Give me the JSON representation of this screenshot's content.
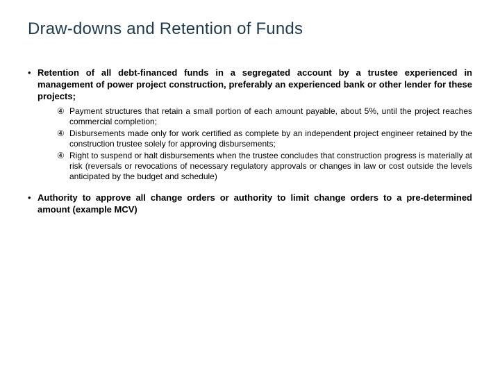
{
  "title": "Draw-downs and Retention of Funds",
  "title_color": "#1f3a4d",
  "title_fontsize": 24,
  "body_fontsize_main": 13,
  "body_fontsize_sub": 12,
  "text_color": "#000000",
  "background_color": "#ffffff",
  "bullets": [
    {
      "marker": "•",
      "text": "Retention of all debt-financed funds in a segregated account by a trustee experienced in management of power project construction, preferably an experienced bank or other lender for these projects;",
      "sub": [
        {
          "marker": "④",
          "text": "Payment structures that retain a small portion of each amount payable, about 5%, until the project reaches commercial completion;"
        },
        {
          "marker": "④",
          "text": "Disbursements made only for work certified as complete by an independent project engineer retained by the construction trustee solely for approving disbursements;"
        },
        {
          "marker": "④",
          "text": "Right to suspend or halt disbursements when the trustee concludes that construction progress is materially at risk (reversals or revocations of necessary regulatory approvals or changes in law or cost outside the levels anticipated by the budget and schedule)"
        }
      ]
    },
    {
      "marker": "•",
      "text": "Authority to approve all change orders or authority to limit change orders to a pre-determined amount (example MCV)",
      "sub": []
    }
  ]
}
